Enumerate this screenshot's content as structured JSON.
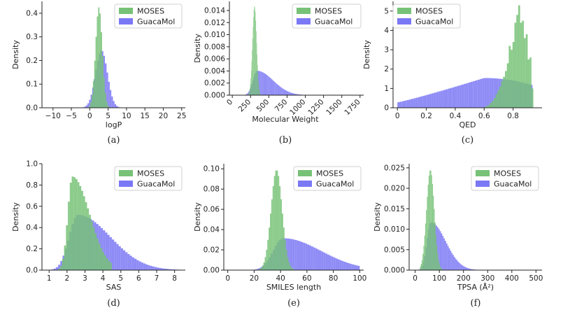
{
  "chart_data": [
    {
      "type": "bar",
      "panel": "(a)",
      "xlabel": "logP",
      "ylabel": "Density",
      "xlim": [
        -13,
        26
      ],
      "ylim": [
        0,
        0.45
      ],
      "xticks": [
        -10,
        -5,
        0,
        5,
        10,
        15,
        20,
        25
      ],
      "yticks": [
        0.0,
        0.1,
        0.2,
        0.3,
        0.4
      ],
      "ytick_labels": [
        "0.0",
        "0.1",
        "0.2",
        "0.3",
        "0.4"
      ],
      "legend": [
        "MOSES",
        "GuacaMol"
      ],
      "series": [
        {
          "name": "MOSES",
          "dist": {
            "kind": "normal",
            "mu": 2.5,
            "sd": 0.9
          },
          "range": [
            -2,
            8
          ],
          "bins": 28
        },
        {
          "name": "GuacaMol",
          "dist": {
            "kind": "normal",
            "mu": 3.2,
            "sd": 1.6
          },
          "range": [
            -8,
            18
          ],
          "bins": 60
        }
      ]
    },
    {
      "type": "bar",
      "panel": "(b)",
      "xlabel": "Molecular Weight",
      "ylabel": "Density",
      "xlim": [
        -40,
        1800
      ],
      "ylim": [
        0,
        0.0155
      ],
      "xticks": [
        0,
        250,
        500,
        750,
        1000,
        1250,
        1500,
        1750
      ],
      "yticks": [
        0.0,
        0.002,
        0.004,
        0.006,
        0.008,
        0.01,
        0.012,
        0.014
      ],
      "ytick_labels": [
        "0.000",
        "0.002",
        "0.004",
        "0.006",
        "0.008",
        "0.010",
        "0.012",
        "0.014"
      ],
      "legend": [
        "MOSES",
        "GuacaMol"
      ],
      "series": [
        {
          "name": "MOSES",
          "dist": {
            "kind": "normal",
            "mu": 305,
            "sd": 28
          },
          "range": [
            220,
            380
          ],
          "bins": 26
        },
        {
          "name": "GuacaMol",
          "dist": {
            "kind": "gamma",
            "mode": 340,
            "sd": 115
          },
          "range": [
            180,
            1000
          ],
          "bins": 60
        }
      ]
    },
    {
      "type": "bar",
      "panel": "(c)",
      "xlabel": "QED",
      "ylabel": "Density",
      "xlim": [
        -0.03,
        1.0
      ],
      "ylim": [
        0,
        5.5
      ],
      "xticks": [
        0.0,
        0.2,
        0.4,
        0.6,
        0.8
      ],
      "yticks": [
        0,
        1,
        2,
        3,
        4,
        5
      ],
      "ytick_labels": [
        "0",
        "1",
        "2",
        "3",
        "4",
        "5"
      ],
      "legend": [
        "MOSES",
        "GuacaMol"
      ],
      "series": [
        {
          "name": "MOSES",
          "dist": {
            "kind": "empirical",
            "values": [
              0.05,
              0.1,
              0.15,
              0.25,
              0.35,
              0.5,
              0.7,
              0.9,
              1.1,
              1.4,
              1.6,
              1.9,
              2.3,
              3.2,
              3.0,
              3.4,
              4.4,
              4.8,
              5.3,
              4.4,
              4.5,
              3.6,
              3.8,
              2.5,
              2.6,
              1.0
            ]
          },
          "range": [
            0.6,
            0.94
          ],
          "bins": 26
        },
        {
          "name": "GuacaMol",
          "dist": {
            "kind": "ramp",
            "peak": 0.6,
            "peak_height": 1.55,
            "edge": 0.94
          },
          "range": [
            0.0,
            0.95
          ],
          "bins": 60
        }
      ]
    },
    {
      "type": "bar",
      "panel": "(d)",
      "xlabel": "SAS",
      "ylabel": "Density",
      "xlim": [
        0.6,
        8.6
      ],
      "ylim": [
        0,
        1.0
      ],
      "xticks": [
        1,
        2,
        3,
        4,
        5,
        6,
        7,
        8
      ],
      "yticks": [
        0.0,
        0.2,
        0.4,
        0.6,
        0.8,
        1.0
      ],
      "ytick_labels": [
        "0.0",
        "0.2",
        "0.4",
        "0.6",
        "0.8",
        "1.0"
      ],
      "legend": [
        "MOSES",
        "GuacaMol"
      ],
      "series": [
        {
          "name": "MOSES",
          "dist": {
            "kind": "lognormal",
            "mode": 2.3,
            "sd": 0.5
          },
          "range": [
            1.3,
            4.5
          ],
          "bins": 30
        },
        {
          "name": "GuacaMol",
          "dist": {
            "kind": "gamma",
            "mode": 2.6,
            "sd": 0.95
          },
          "range": [
            1.0,
            8.5
          ],
          "bins": 60
        }
      ]
    },
    {
      "type": "bar",
      "panel": "(e)",
      "xlabel": "SMILES length",
      "ylabel": "Density",
      "xlim": [
        -3,
        103
      ],
      "ylim": [
        0,
        0.105
      ],
      "xticks": [
        0,
        20,
        40,
        60,
        80,
        100
      ],
      "yticks": [
        0.0,
        0.02,
        0.04,
        0.06,
        0.08,
        0.1
      ],
      "ytick_labels": [
        "0.00",
        "0.02",
        "0.04",
        "0.06",
        "0.08",
        "0.10"
      ],
      "legend": [
        "MOSES",
        "GuacaMol"
      ],
      "series": [
        {
          "name": "MOSES",
          "dist": {
            "kind": "normal",
            "mu": 37,
            "sd": 4.2
          },
          "range": [
            24,
            52
          ],
          "bins": 28
        },
        {
          "name": "GuacaMol",
          "dist": {
            "kind": "gamma",
            "mode": 42,
            "sd": 15
          },
          "range": [
            8,
            100
          ],
          "bins": 60
        }
      ]
    },
    {
      "type": "bar",
      "panel": "(f)",
      "xlabel": "TPSA (Å²)",
      "ylabel": "Density",
      "xlim": [
        -25,
        525
      ],
      "ylim": [
        0,
        0.026
      ],
      "xticks": [
        0,
        100,
        200,
        300,
        400,
        500
      ],
      "yticks": [
        0.0,
        0.005,
        0.01,
        0.015,
        0.02,
        0.025
      ],
      "ytick_labels": [
        "0.000",
        "0.005",
        "0.010",
        "0.015",
        "0.020",
        "0.025"
      ],
      "legend": [
        "MOSES",
        "GuacaMol"
      ],
      "series": [
        {
          "name": "MOSES",
          "dist": {
            "kind": "normal",
            "mu": 63,
            "sd": 16
          },
          "range": [
            20,
            120
          ],
          "bins": 28
        },
        {
          "name": "GuacaMol",
          "dist": {
            "kind": "gamma",
            "mode": 65,
            "sd": 32
          },
          "range": [
            0,
            320
          ],
          "bins": 60
        }
      ]
    }
  ],
  "colors": {
    "moses": "#77c277",
    "guacamol": "#7b78f5"
  }
}
